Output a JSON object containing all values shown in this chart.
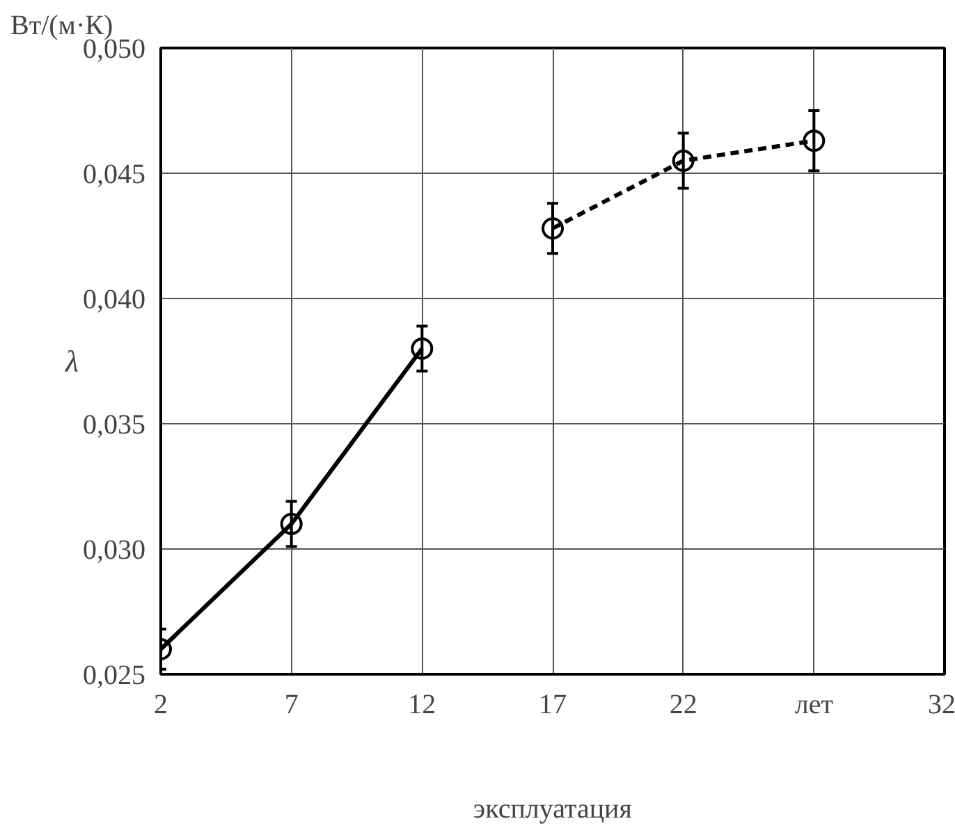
{
  "chart_data": {
    "type": "line",
    "xlabel": "эксплуатация",
    "ylabel": "λ",
    "annotations": [
      "Вт/(м·К)"
    ],
    "xlim": [
      2,
      32
    ],
    "xticks": [
      2,
      7,
      12,
      17,
      22,
      {
        "value": 27,
        "label": "лет"
      },
      32
    ],
    "ylim": [
      0.025,
      0.05
    ],
    "yticks": [
      {
        "value": 0.025,
        "label": "0,025"
      },
      {
        "value": 0.03,
        "label": "0,030"
      },
      {
        "value": 0.035,
        "label": "0,035"
      },
      {
        "value": 0.04,
        "label": "0,040"
      },
      {
        "value": 0.045,
        "label": "0,045"
      },
      {
        "value": 0.05,
        "label": "0,050"
      }
    ],
    "grid": true,
    "marker": "circle",
    "series": [
      {
        "color": "#000000",
        "line_style": "solid",
        "x": [
          2,
          7,
          12
        ],
        "values": [
          0.026,
          0.031,
          0.038
        ],
        "errors": [
          0.0008,
          0.0009,
          0.0009
        ]
      },
      {
        "color": "#000000",
        "line_style": "dashed",
        "x": [
          17,
          22,
          27
        ],
        "values": [
          0.0428,
          0.0455,
          0.0463
        ],
        "errors": [
          0.001,
          0.0011,
          0.0012
        ]
      }
    ]
  }
}
